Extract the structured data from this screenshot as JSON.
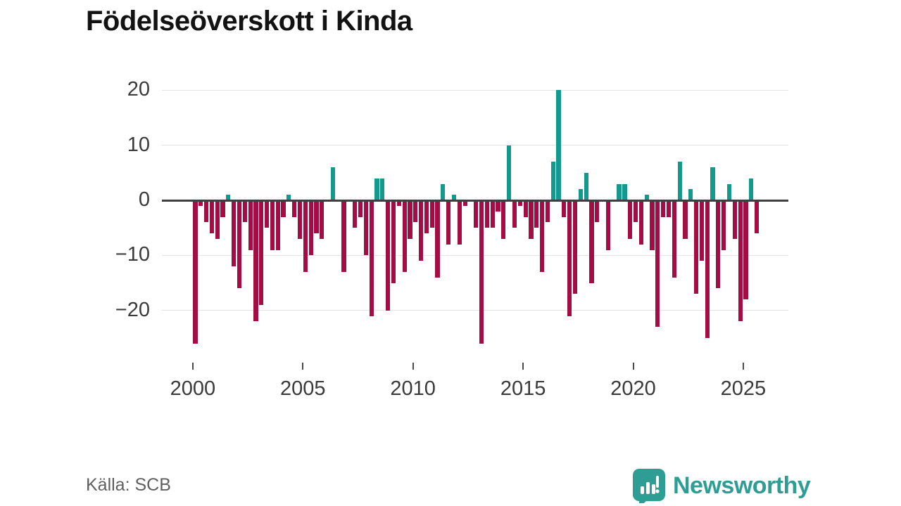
{
  "title": "Födelseöverskott i Kinda",
  "source": "Källa: SCB",
  "brand": {
    "name": "Newsworthy",
    "icon": "bar-chart-speech-bubble"
  },
  "colors": {
    "positive_bar": "#13998e",
    "negative_bar": "#a30d43",
    "zero_axis": "#3f3f3f",
    "gridline": "#e4e4e4",
    "brand_teal": "#2e9e95"
  },
  "chart_data": {
    "type": "bar",
    "title": "Födelseöverskott i Kinda",
    "frequency": "quarterly",
    "start_year": 2000,
    "start_quarter": 1,
    "values": [
      -26,
      -1,
      -4,
      -6,
      -7,
      -3,
      1,
      -12,
      -16,
      -4,
      -9,
      -22,
      -19,
      -5,
      -9,
      -9,
      -3,
      1,
      -3,
      -7,
      -13,
      -10,
      -6,
      -7,
      0,
      6,
      0,
      -13,
      0,
      -5,
      -3,
      -10,
      -21,
      4,
      4,
      -20,
      -15,
      -1,
      -13,
      -7,
      -4,
      -11,
      -6,
      -5,
      -14,
      3,
      -8,
      1,
      -8,
      -1,
      0,
      -5,
      -26,
      -5,
      -5,
      -2,
      -7,
      10,
      -5,
      -1,
      -3,
      -7,
      -5,
      -13,
      -4,
      7,
      20,
      -3,
      -21,
      -17,
      2,
      5,
      -15,
      -4,
      0,
      -9,
      0,
      3,
      3,
      -7,
      -4,
      -8,
      1,
      -9,
      -23,
      -3,
      -3,
      -14,
      7,
      -7,
      2,
      -17,
      -11,
      -25,
      6,
      -16,
      -9,
      3,
      -7,
      -22,
      -18,
      4,
      -6
    ],
    "y_ticks": [
      20,
      10,
      0,
      -10,
      -20
    ],
    "y_tick_labels": [
      "20",
      "10",
      "0",
      "−10",
      "−20"
    ],
    "x_tick_years": [
      2000,
      2005,
      2010,
      2015,
      2020,
      2025
    ],
    "x_tick_labels": [
      "2000",
      "2005",
      "2010",
      "2015",
      "2020",
      "2025"
    ],
    "ylim": [
      -27,
      21
    ],
    "grid": true,
    "legend": false
  }
}
